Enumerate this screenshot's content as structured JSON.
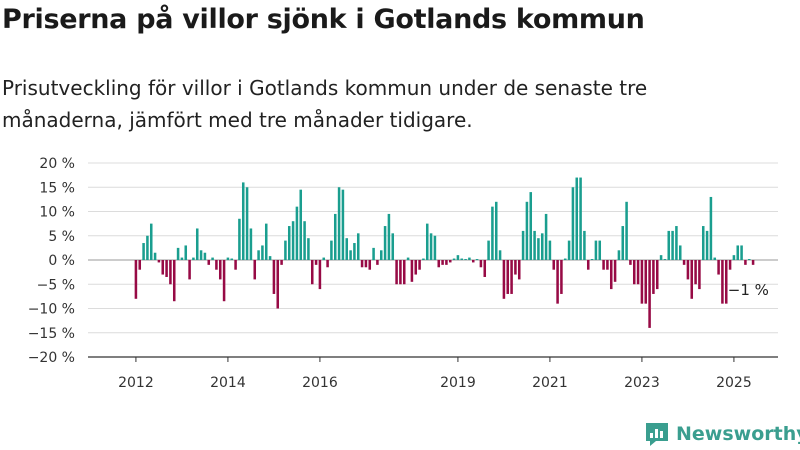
{
  "header": {
    "title": "Priserna på villor sjönk i Gotlands kommun",
    "subtitle": "Prisutveckling för villor i Gotlands kommun under de senaste tre månaderna, jämfört med tre månader tidigare."
  },
  "brand": {
    "name": "Newsworthy",
    "icon": "newsworthy-logo-icon"
  },
  "chart_data": {
    "type": "bar",
    "title": "",
    "xlabel": "",
    "ylabel": "",
    "ylim": [
      -20,
      20
    ],
    "yticks": [
      20,
      15,
      10,
      5,
      0,
      -5,
      -10,
      -15,
      -20
    ],
    "ytick_labels": [
      "20 %",
      "15 %",
      "10 %",
      "5 %",
      "0 %",
      "−5 %",
      "−10 %",
      "−15 %",
      "−20 %"
    ],
    "x_tick_labels": [
      {
        "label": "2012",
        "date": "2012-01"
      },
      {
        "label": "2014",
        "date": "2014-01"
      },
      {
        "label": "2016",
        "date": "2016-01"
      },
      {
        "label": "2019",
        "date": "2019-01"
      },
      {
        "label": "2021",
        "date": "2021-01"
      },
      {
        "label": "2023",
        "date": "2023-01"
      },
      {
        "label": "2025",
        "date": "2025-01"
      }
    ],
    "x_start": "2011-01",
    "x_end": "2025-12",
    "grid": true,
    "colors": {
      "positive": "#1a9e8f",
      "negative": "#970a45",
      "grid": "#dcdcdc",
      "axis": "#333333"
    },
    "annotation": {
      "text": "−1 %",
      "date": "2025-02",
      "value": -1
    },
    "series": [
      {
        "values": [
          {
            "date": "2012-01",
            "value": -8
          },
          {
            "date": "2012-02",
            "value": -2
          },
          {
            "date": "2012-03",
            "value": 3.5
          },
          {
            "date": "2012-04",
            "value": 5
          },
          {
            "date": "2012-05",
            "value": 7.5
          },
          {
            "date": "2012-06",
            "value": 1.5
          },
          {
            "date": "2012-07",
            "value": -0.5
          },
          {
            "date": "2012-08",
            "value": -3
          },
          {
            "date": "2012-09",
            "value": -3.5
          },
          {
            "date": "2012-10",
            "value": -5
          },
          {
            "date": "2012-11",
            "value": -8.5
          },
          {
            "date": "2012-12",
            "value": 2.5
          },
          {
            "date": "2013-01",
            "value": 0.5
          },
          {
            "date": "2013-02",
            "value": 3
          },
          {
            "date": "2013-03",
            "value": -4
          },
          {
            "date": "2013-04",
            "value": 0.5
          },
          {
            "date": "2013-05",
            "value": 6.5
          },
          {
            "date": "2013-06",
            "value": 2
          },
          {
            "date": "2013-07",
            "value": 1.5
          },
          {
            "date": "2013-08",
            "value": -1
          },
          {
            "date": "2013-09",
            "value": 0.5
          },
          {
            "date": "2013-10",
            "value": -2
          },
          {
            "date": "2013-11",
            "value": -4
          },
          {
            "date": "2013-12",
            "value": -8.5
          },
          {
            "date": "2014-01",
            "value": 0.5
          },
          {
            "date": "2014-02",
            "value": 0.3
          },
          {
            "date": "2014-03",
            "value": -2
          },
          {
            "date": "2014-04",
            "value": 8.5
          },
          {
            "date": "2014-05",
            "value": 16
          },
          {
            "date": "2014-06",
            "value": 15
          },
          {
            "date": "2014-07",
            "value": 6.5
          },
          {
            "date": "2014-08",
            "value": -4
          },
          {
            "date": "2014-09",
            "value": 2
          },
          {
            "date": "2014-10",
            "value": 3
          },
          {
            "date": "2014-11",
            "value": 7.5
          },
          {
            "date": "2014-12",
            "value": 0.8
          },
          {
            "date": "2015-01",
            "value": -7
          },
          {
            "date": "2015-02",
            "value": -10
          },
          {
            "date": "2015-03",
            "value": -1
          },
          {
            "date": "2015-04",
            "value": 4
          },
          {
            "date": "2015-05",
            "value": 7
          },
          {
            "date": "2015-06",
            "value": 8
          },
          {
            "date": "2015-07",
            "value": 11
          },
          {
            "date": "2015-08",
            "value": 14.5
          },
          {
            "date": "2015-09",
            "value": 8
          },
          {
            "date": "2015-10",
            "value": 4.5
          },
          {
            "date": "2015-11",
            "value": -5
          },
          {
            "date": "2015-12",
            "value": -1
          },
          {
            "date": "2016-01",
            "value": -6
          },
          {
            "date": "2016-02",
            "value": 0.5
          },
          {
            "date": "2016-03",
            "value": -1.5
          },
          {
            "date": "2016-04",
            "value": 4
          },
          {
            "date": "2016-05",
            "value": 9.5
          },
          {
            "date": "2016-06",
            "value": 15
          },
          {
            "date": "2016-07",
            "value": 14.5
          },
          {
            "date": "2016-08",
            "value": 4.5
          },
          {
            "date": "2016-09",
            "value": 2
          },
          {
            "date": "2016-10",
            "value": 3.5
          },
          {
            "date": "2016-11",
            "value": 5.5
          },
          {
            "date": "2016-12",
            "value": -1.5
          },
          {
            "date": "2017-01",
            "value": -1.5
          },
          {
            "date": "2017-02",
            "value": -2
          },
          {
            "date": "2017-03",
            "value": 2.5
          },
          {
            "date": "2017-04",
            "value": -1
          },
          {
            "date": "2017-05",
            "value": 2
          },
          {
            "date": "2017-06",
            "value": 7
          },
          {
            "date": "2017-07",
            "value": 9.5
          },
          {
            "date": "2017-08",
            "value": 5.5
          },
          {
            "date": "2017-09",
            "value": -5
          },
          {
            "date": "2017-10",
            "value": -5
          },
          {
            "date": "2017-11",
            "value": -5
          },
          {
            "date": "2017-12",
            "value": 0.5
          },
          {
            "date": "2018-01",
            "value": -4.5
          },
          {
            "date": "2018-02",
            "value": -3
          },
          {
            "date": "2018-03",
            "value": -2
          },
          {
            "date": "2018-04",
            "value": 0.3
          },
          {
            "date": "2018-05",
            "value": 7.5
          },
          {
            "date": "2018-06",
            "value": 5.5
          },
          {
            "date": "2018-07",
            "value": 5
          },
          {
            "date": "2018-08",
            "value": -1.5
          },
          {
            "date": "2018-09",
            "value": -1
          },
          {
            "date": "2018-10",
            "value": -1
          },
          {
            "date": "2018-11",
            "value": -0.5
          },
          {
            "date": "2018-12",
            "value": 0.3
          },
          {
            "date": "2019-01",
            "value": 1
          },
          {
            "date": "2019-02",
            "value": 0.3
          },
          {
            "date": "2019-03",
            "value": 0.2
          },
          {
            "date": "2019-04",
            "value": 0.5
          },
          {
            "date": "2019-05",
            "value": -0.5
          },
          {
            "date": "2019-06",
            "value": 0.2
          },
          {
            "date": "2019-07",
            "value": -1.5
          },
          {
            "date": "2019-08",
            "value": -3.5
          },
          {
            "date": "2019-09",
            "value": 4
          },
          {
            "date": "2019-10",
            "value": 11
          },
          {
            "date": "2019-11",
            "value": 12
          },
          {
            "date": "2019-12",
            "value": 2
          },
          {
            "date": "2020-01",
            "value": -8
          },
          {
            "date": "2020-02",
            "value": -7
          },
          {
            "date": "2020-03",
            "value": -7
          },
          {
            "date": "2020-04",
            "value": -3
          },
          {
            "date": "2020-05",
            "value": -4
          },
          {
            "date": "2020-06",
            "value": 6
          },
          {
            "date": "2020-07",
            "value": 12
          },
          {
            "date": "2020-08",
            "value": 14
          },
          {
            "date": "2020-09",
            "value": 6
          },
          {
            "date": "2020-10",
            "value": 4.5
          },
          {
            "date": "2020-11",
            "value": 5.5
          },
          {
            "date": "2020-12",
            "value": 9.5
          },
          {
            "date": "2021-01",
            "value": 4
          },
          {
            "date": "2021-02",
            "value": -2
          },
          {
            "date": "2021-03",
            "value": -9
          },
          {
            "date": "2021-04",
            "value": -7
          },
          {
            "date": "2021-05",
            "value": 0.3
          },
          {
            "date": "2021-06",
            "value": 4
          },
          {
            "date": "2021-07",
            "value": 15
          },
          {
            "date": "2021-08",
            "value": 17
          },
          {
            "date": "2021-09",
            "value": 17
          },
          {
            "date": "2021-10",
            "value": 6
          },
          {
            "date": "2021-11",
            "value": -2
          },
          {
            "date": "2021-12",
            "value": 0.2
          },
          {
            "date": "2022-01",
            "value": 4
          },
          {
            "date": "2022-02",
            "value": 4
          },
          {
            "date": "2022-03",
            "value": -2
          },
          {
            "date": "2022-04",
            "value": -2
          },
          {
            "date": "2022-05",
            "value": -6
          },
          {
            "date": "2022-06",
            "value": -4.5
          },
          {
            "date": "2022-07",
            "value": 2
          },
          {
            "date": "2022-08",
            "value": 7
          },
          {
            "date": "2022-09",
            "value": 12
          },
          {
            "date": "2022-10",
            "value": -1
          },
          {
            "date": "2022-11",
            "value": -5
          },
          {
            "date": "2022-12",
            "value": -5
          },
          {
            "date": "2023-01",
            "value": -9
          },
          {
            "date": "2023-02",
            "value": -9
          },
          {
            "date": "2023-03",
            "value": -14
          },
          {
            "date": "2023-04",
            "value": -7
          },
          {
            "date": "2023-05",
            "value": -6
          },
          {
            "date": "2023-06",
            "value": 1
          },
          {
            "date": "2023-07",
            "value": 0.2
          },
          {
            "date": "2023-08",
            "value": 6
          },
          {
            "date": "2023-09",
            "value": 6
          },
          {
            "date": "2023-10",
            "value": 7
          },
          {
            "date": "2023-11",
            "value": 3
          },
          {
            "date": "2023-12",
            "value": -1
          },
          {
            "date": "2024-01",
            "value": -4
          },
          {
            "date": "2024-02",
            "value": -8
          },
          {
            "date": "2024-03",
            "value": -5
          },
          {
            "date": "2024-04",
            "value": -6
          },
          {
            "date": "2024-05",
            "value": 7
          },
          {
            "date": "2024-06",
            "value": 6
          },
          {
            "date": "2024-07",
            "value": 13
          },
          {
            "date": "2024-08",
            "value": 0.5
          },
          {
            "date": "2024-09",
            "value": -3
          },
          {
            "date": "2024-10",
            "value": -9
          },
          {
            "date": "2024-11",
            "value": -9
          },
          {
            "date": "2024-12",
            "value": -2
          },
          {
            "date": "2025-01",
            "value": 1
          },
          {
            "date": "2025-02",
            "value": 3
          },
          {
            "date": "2025-03",
            "value": 3
          },
          {
            "date": "2025-04",
            "value": -1
          },
          {
            "date": "2025-05",
            "value": 0.2
          },
          {
            "date": "2025-06",
            "value": -1
          }
        ]
      }
    ]
  }
}
